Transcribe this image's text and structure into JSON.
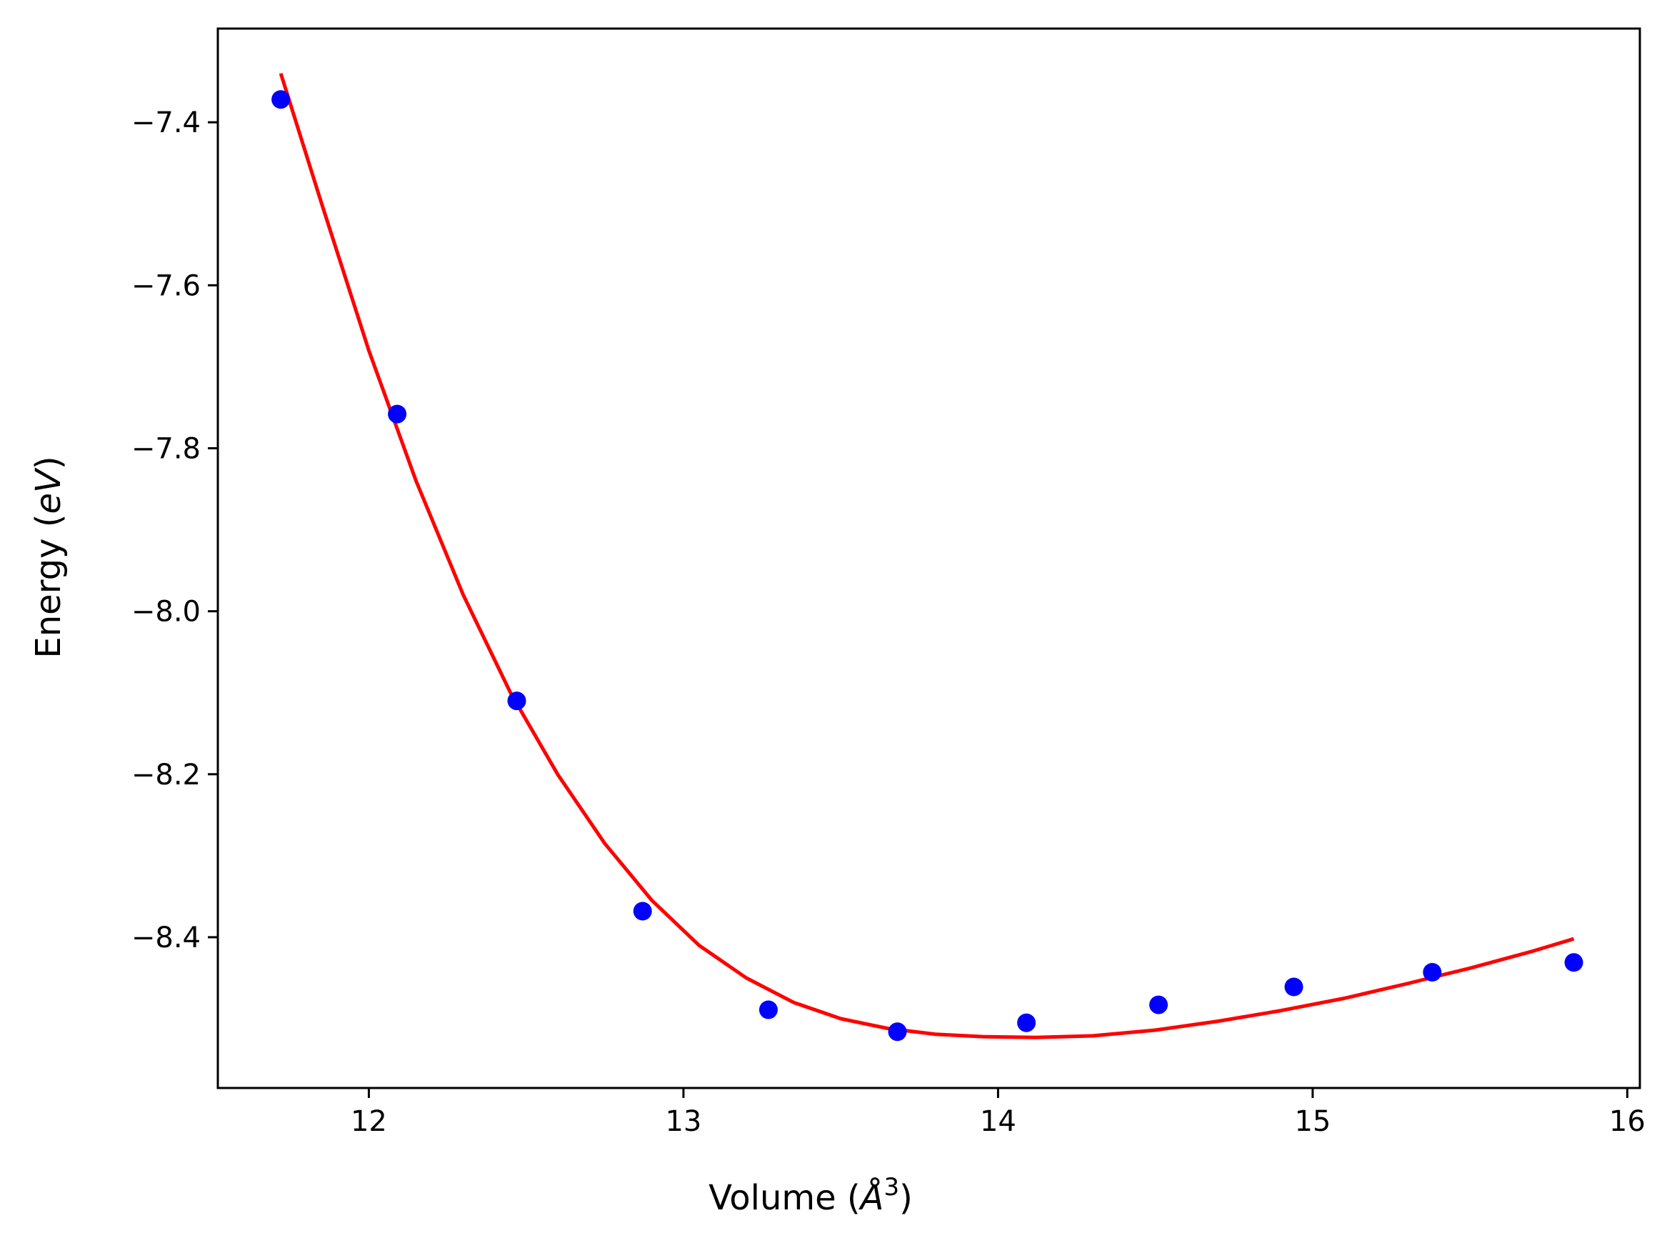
{
  "chart_data": {
    "type": "scatter",
    "title": "",
    "xlabel": {
      "text": "Volume (",
      "unit_symbol": "Å",
      "unit_superscript": "3",
      "close": ")"
    },
    "ylabel": {
      "text": "Energy (",
      "unit": "eV",
      "close": ")"
    },
    "xlim": [
      11.52,
      16.04
    ],
    "ylim": [
      -8.585,
      -7.285
    ],
    "xticks": [
      12,
      13,
      14,
      15,
      16
    ],
    "xtick_labels": [
      "12",
      "13",
      "14",
      "15",
      "16"
    ],
    "yticks": [
      -7.4,
      -7.6,
      -7.8,
      -8.0,
      -8.2,
      -8.4
    ],
    "ytick_labels": [
      "−7.4",
      "−7.6",
      "−7.8",
      "−8.0",
      "−8.2",
      "−8.4"
    ],
    "grid": false,
    "legend": "none",
    "series": [
      {
        "kind": "points",
        "marker": "circle",
        "color": "#0000ff",
        "points": [
          {
            "x": 11.72,
            "y": -7.372
          },
          {
            "x": 12.09,
            "y": -7.758
          },
          {
            "x": 12.47,
            "y": -8.11
          },
          {
            "x": 12.87,
            "y": -8.368
          },
          {
            "x": 13.27,
            "y": -8.489
          },
          {
            "x": 13.68,
            "y": -8.516
          },
          {
            "x": 14.09,
            "y": -8.505
          },
          {
            "x": 14.51,
            "y": -8.483
          },
          {
            "x": 14.94,
            "y": -8.461
          },
          {
            "x": 15.38,
            "y": -8.443
          },
          {
            "x": 15.83,
            "y": -8.431
          }
        ]
      },
      {
        "kind": "line",
        "color": "#ff0000",
        "points": [
          {
            "x": 11.72,
            "y": -7.34
          },
          {
            "x": 11.85,
            "y": -7.5
          },
          {
            "x": 12.0,
            "y": -7.68
          },
          {
            "x": 12.15,
            "y": -7.84
          },
          {
            "x": 12.3,
            "y": -7.98
          },
          {
            "x": 12.45,
            "y": -8.1
          },
          {
            "x": 12.6,
            "y": -8.2
          },
          {
            "x": 12.75,
            "y": -8.285
          },
          {
            "x": 12.9,
            "y": -8.355
          },
          {
            "x": 13.05,
            "y": -8.41
          },
          {
            "x": 13.2,
            "y": -8.45
          },
          {
            "x": 13.35,
            "y": -8.48
          },
          {
            "x": 13.5,
            "y": -8.5
          },
          {
            "x": 13.65,
            "y": -8.512
          },
          {
            "x": 13.8,
            "y": -8.519
          },
          {
            "x": 13.95,
            "y": -8.522
          },
          {
            "x": 14.12,
            "y": -8.523
          },
          {
            "x": 14.3,
            "y": -8.521
          },
          {
            "x": 14.5,
            "y": -8.514
          },
          {
            "x": 14.7,
            "y": -8.503
          },
          {
            "x": 14.9,
            "y": -8.49
          },
          {
            "x": 15.1,
            "y": -8.475
          },
          {
            "x": 15.3,
            "y": -8.457
          },
          {
            "x": 15.5,
            "y": -8.438
          },
          {
            "x": 15.7,
            "y": -8.417
          },
          {
            "x": 15.83,
            "y": -8.402
          }
        ]
      }
    ]
  }
}
